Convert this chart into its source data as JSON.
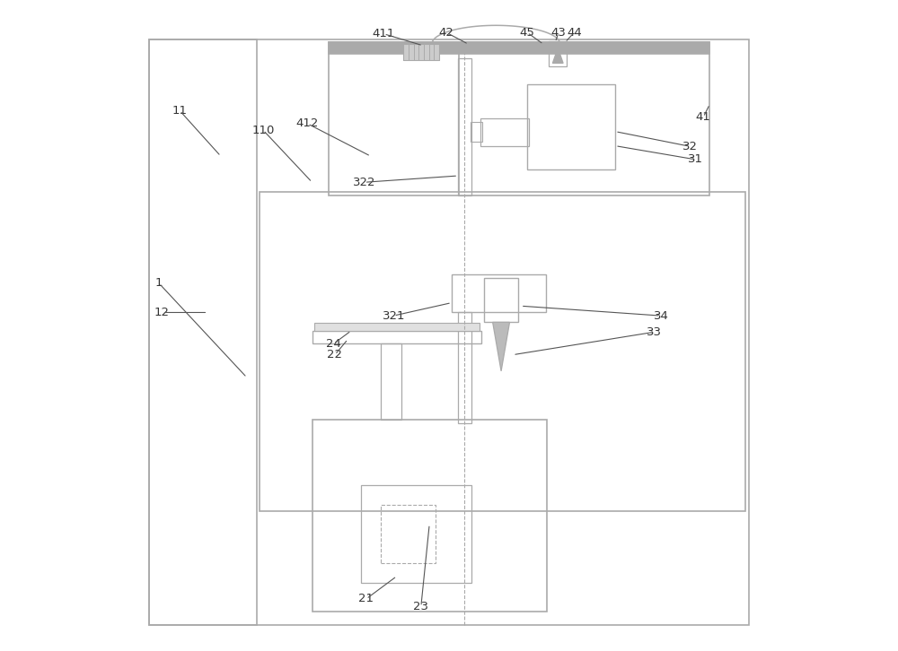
{
  "bg_color": "#ffffff",
  "line_color": "#aaaaaa",
  "dark_line": "#555555",
  "label_color": "#333333",
  "fig_width": 10.0,
  "fig_height": 7.26
}
